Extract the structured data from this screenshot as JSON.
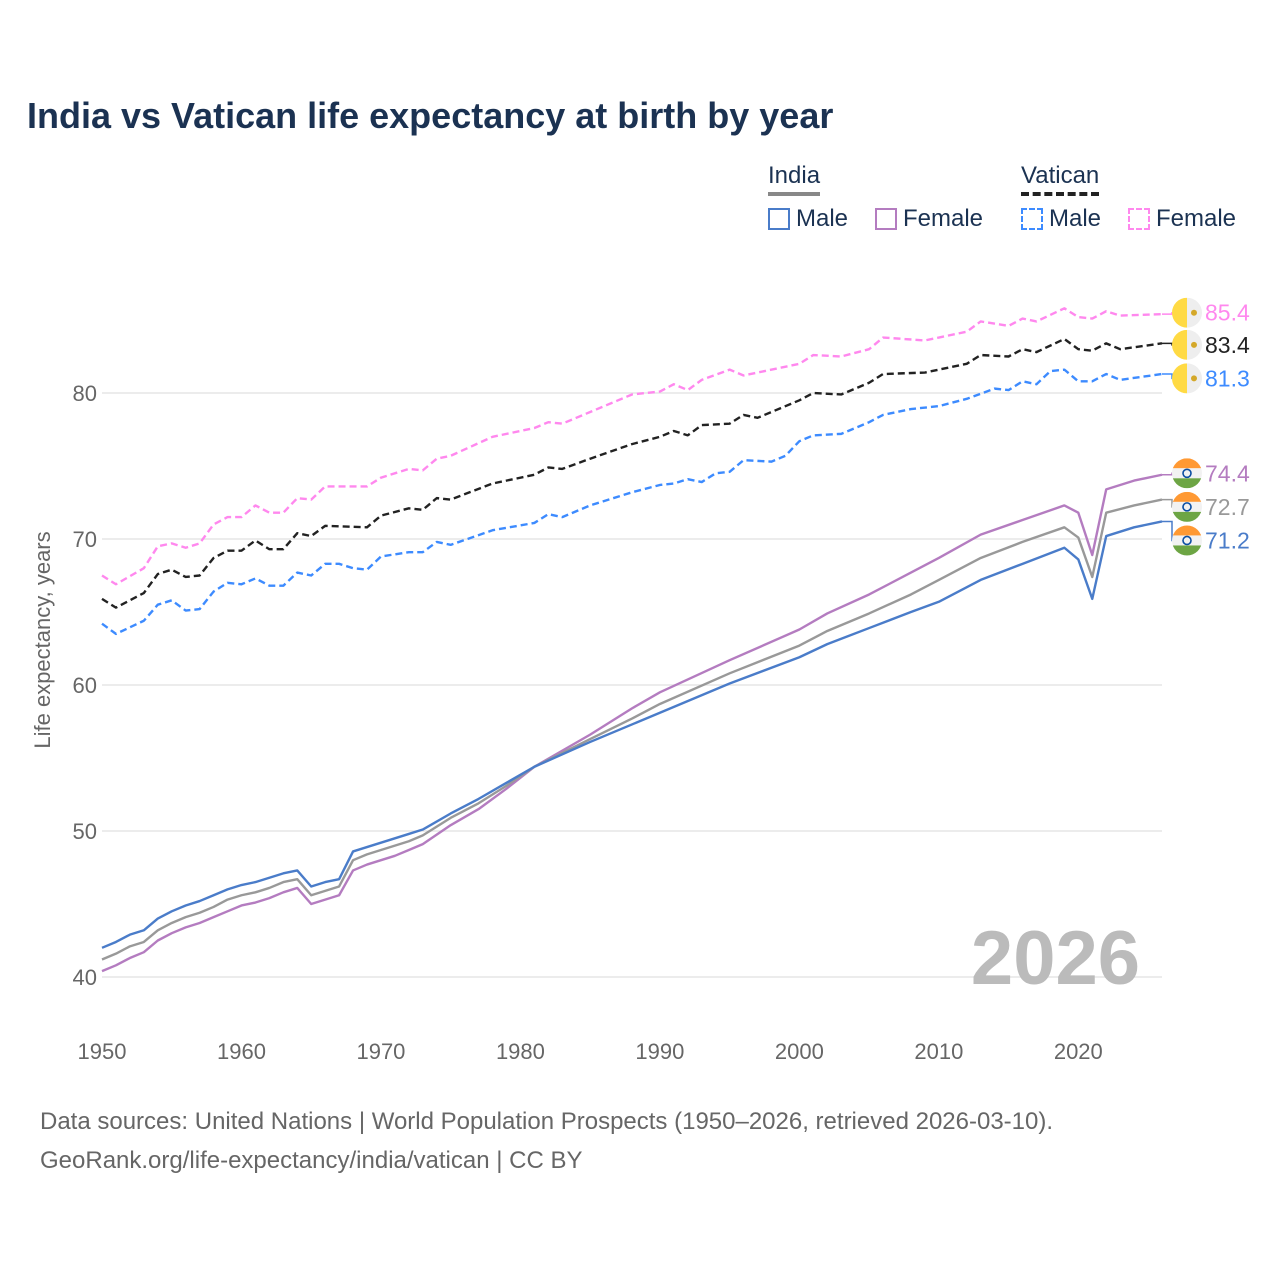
{
  "title": "India vs Vatican life expectancy at birth by year",
  "legend": {
    "india": {
      "label": "India",
      "male": "Male",
      "female": "Female"
    },
    "vatican": {
      "label": "Vatican",
      "male": "Male",
      "female": "Female"
    }
  },
  "year_watermark": "2026",
  "sources": {
    "line1": "Data sources: United Nations | World Population Prospects (1950–2026, retrieved 2026-03-10).",
    "line2": "GeoRank.org/life-expectancy/india/vatican | CC BY"
  },
  "chart_data": {
    "type": "line",
    "title": "India vs Vatican life expectancy at birth by year",
    "xlabel": "",
    "ylabel": "Life expectancy, years",
    "xlim": [
      1950,
      2026
    ],
    "ylim": [
      38.5,
      88
    ],
    "xticks": [
      1950,
      1960,
      1970,
      1980,
      1990,
      2000,
      2010,
      2020
    ],
    "yticks": [
      40,
      50,
      60,
      70,
      80
    ],
    "grid": true,
    "legend_position": "top-right",
    "series": [
      {
        "name": "Vatican Female",
        "color": "#ff88ee",
        "dashed": true,
        "end_label": "85.4",
        "points": [
          [
            1950,
            67.5
          ],
          [
            1951,
            66.9
          ],
          [
            1953,
            68.0
          ],
          [
            1954,
            69.5
          ],
          [
            1955,
            69.7
          ],
          [
            1956,
            69.4
          ],
          [
            1957,
            69.7
          ],
          [
            1958,
            71.0
          ],
          [
            1959,
            71.5
          ],
          [
            1960,
            71.5
          ],
          [
            1961,
            72.3
          ],
          [
            1962,
            71.8
          ],
          [
            1963,
            71.8
          ],
          [
            1964,
            72.8
          ],
          [
            1965,
            72.7
          ],
          [
            1966,
            73.6
          ],
          [
            1969,
            73.6
          ],
          [
            1970,
            74.2
          ],
          [
            1972,
            74.8
          ],
          [
            1973,
            74.7
          ],
          [
            1974,
            75.5
          ],
          [
            1975,
            75.7
          ],
          [
            1978,
            77.0
          ],
          [
            1981,
            77.6
          ],
          [
            1982,
            78.0
          ],
          [
            1983,
            77.9
          ],
          [
            1985,
            78.7
          ],
          [
            1988,
            79.9
          ],
          [
            1990,
            80.1
          ],
          [
            1991,
            80.6
          ],
          [
            1992,
            80.2
          ],
          [
            1993,
            80.9
          ],
          [
            1995,
            81.6
          ],
          [
            1996,
            81.2
          ],
          [
            2000,
            82.0
          ],
          [
            2001,
            82.6
          ],
          [
            2003,
            82.5
          ],
          [
            2005,
            83.0
          ],
          [
            2006,
            83.8
          ],
          [
            2009,
            83.6
          ],
          [
            2010,
            83.8
          ],
          [
            2012,
            84.2
          ],
          [
            2013,
            84.9
          ],
          [
            2015,
            84.6
          ],
          [
            2016,
            85.1
          ],
          [
            2017,
            84.9
          ],
          [
            2019,
            85.8
          ],
          [
            2020,
            85.2
          ],
          [
            2021,
            85.1
          ],
          [
            2022,
            85.6
          ],
          [
            2023,
            85.3
          ],
          [
            2026,
            85.4
          ]
        ]
      },
      {
        "name": "Vatican (both sexes)",
        "color": "#222222",
        "dashed": true,
        "end_label": "83.4",
        "points": [
          [
            1950,
            65.9
          ],
          [
            1951,
            65.3
          ],
          [
            1953,
            66.3
          ],
          [
            1954,
            67.6
          ],
          [
            1955,
            67.9
          ],
          [
            1956,
            67.4
          ],
          [
            1957,
            67.5
          ],
          [
            1958,
            68.7
          ],
          [
            1959,
            69.2
          ],
          [
            1960,
            69.2
          ],
          [
            1961,
            69.9
          ],
          [
            1962,
            69.3
          ],
          [
            1963,
            69.3
          ],
          [
            1964,
            70.4
          ],
          [
            1965,
            70.2
          ],
          [
            1966,
            70.9
          ],
          [
            1969,
            70.8
          ],
          [
            1970,
            71.6
          ],
          [
            1972,
            72.1
          ],
          [
            1973,
            72.0
          ],
          [
            1974,
            72.8
          ],
          [
            1975,
            72.7
          ],
          [
            1978,
            73.8
          ],
          [
            1981,
            74.4
          ],
          [
            1982,
            74.9
          ],
          [
            1983,
            74.8
          ],
          [
            1985,
            75.5
          ],
          [
            1988,
            76.5
          ],
          [
            1990,
            77.0
          ],
          [
            1991,
            77.4
          ],
          [
            1992,
            77.1
          ],
          [
            1993,
            77.8
          ],
          [
            1995,
            77.9
          ],
          [
            1996,
            78.5
          ],
          [
            1997,
            78.3
          ],
          [
            2000,
            79.5
          ],
          [
            2001,
            80.0
          ],
          [
            2003,
            79.9
          ],
          [
            2005,
            80.7
          ],
          [
            2006,
            81.3
          ],
          [
            2009,
            81.4
          ],
          [
            2010,
            81.6
          ],
          [
            2012,
            82.0
          ],
          [
            2013,
            82.6
          ],
          [
            2015,
            82.5
          ],
          [
            2016,
            83.0
          ],
          [
            2017,
            82.8
          ],
          [
            2019,
            83.7
          ],
          [
            2020,
            83.0
          ],
          [
            2021,
            82.9
          ],
          [
            2022,
            83.4
          ],
          [
            2023,
            83.0
          ],
          [
            2026,
            83.4
          ]
        ]
      },
      {
        "name": "Vatican Male",
        "color": "#3d8bff",
        "dashed": true,
        "end_label": "81.3",
        "points": [
          [
            1950,
            64.2
          ],
          [
            1951,
            63.5
          ],
          [
            1953,
            64.4
          ],
          [
            1954,
            65.5
          ],
          [
            1955,
            65.8
          ],
          [
            1956,
            65.1
          ],
          [
            1957,
            65.2
          ],
          [
            1958,
            66.4
          ],
          [
            1959,
            67.0
          ],
          [
            1960,
            66.9
          ],
          [
            1961,
            67.3
          ],
          [
            1962,
            66.8
          ],
          [
            1963,
            66.8
          ],
          [
            1964,
            67.7
          ],
          [
            1965,
            67.5
          ],
          [
            1966,
            68.3
          ],
          [
            1967,
            68.3
          ],
          [
            1968,
            68.0
          ],
          [
            1969,
            67.9
          ],
          [
            1970,
            68.8
          ],
          [
            1972,
            69.1
          ],
          [
            1973,
            69.1
          ],
          [
            1974,
            69.8
          ],
          [
            1975,
            69.6
          ],
          [
            1978,
            70.6
          ],
          [
            1981,
            71.1
          ],
          [
            1982,
            71.7
          ],
          [
            1983,
            71.5
          ],
          [
            1985,
            72.3
          ],
          [
            1988,
            73.2
          ],
          [
            1990,
            73.7
          ],
          [
            1991,
            73.8
          ],
          [
            1992,
            74.1
          ],
          [
            1993,
            73.9
          ],
          [
            1994,
            74.5
          ],
          [
            1995,
            74.6
          ],
          [
            1996,
            75.4
          ],
          [
            1998,
            75.3
          ],
          [
            1999,
            75.7
          ],
          [
            2000,
            76.7
          ],
          [
            2001,
            77.1
          ],
          [
            2003,
            77.2
          ],
          [
            2005,
            78.0
          ],
          [
            2006,
            78.5
          ],
          [
            2008,
            78.9
          ],
          [
            2010,
            79.1
          ],
          [
            2012,
            79.6
          ],
          [
            2014,
            80.3
          ],
          [
            2015,
            80.2
          ],
          [
            2016,
            80.8
          ],
          [
            2017,
            80.6
          ],
          [
            2018,
            81.5
          ],
          [
            2019,
            81.6
          ],
          [
            2020,
            80.8
          ],
          [
            2021,
            80.8
          ],
          [
            2022,
            81.3
          ],
          [
            2023,
            80.9
          ],
          [
            2026,
            81.3
          ]
        ]
      },
      {
        "name": "India Female",
        "color": "#b47cc0",
        "dashed": false,
        "end_label": "74.4",
        "points": [
          [
            1950,
            40.4
          ],
          [
            1951,
            40.8
          ],
          [
            1952,
            41.3
          ],
          [
            1953,
            41.7
          ],
          [
            1954,
            42.5
          ],
          [
            1955,
            43.0
          ],
          [
            1956,
            43.4
          ],
          [
            1957,
            43.7
          ],
          [
            1958,
            44.1
          ],
          [
            1959,
            44.5
          ],
          [
            1960,
            44.9
          ],
          [
            1961,
            45.1
          ],
          [
            1962,
            45.4
          ],
          [
            1963,
            45.8
          ],
          [
            1964,
            46.1
          ],
          [
            1965,
            45.0
          ],
          [
            1966,
            45.3
          ],
          [
            1967,
            45.6
          ],
          [
            1968,
            47.3
          ],
          [
            1969,
            47.7
          ],
          [
            1970,
            48.0
          ],
          [
            1971,
            48.3
          ],
          [
            1972,
            48.7
          ],
          [
            1973,
            49.1
          ],
          [
            1975,
            50.4
          ],
          [
            1977,
            51.5
          ],
          [
            1979,
            52.9
          ],
          [
            1981,
            54.4
          ],
          [
            1985,
            56.6
          ],
          [
            1988,
            58.4
          ],
          [
            1990,
            59.5
          ],
          [
            1995,
            61.7
          ],
          [
            2000,
            63.8
          ],
          [
            2002,
            64.9
          ],
          [
            2005,
            66.2
          ],
          [
            2008,
            67.7
          ],
          [
            2010,
            68.7
          ],
          [
            2013,
            70.3
          ],
          [
            2016,
            71.3
          ],
          [
            2019,
            72.3
          ],
          [
            2020,
            71.8
          ],
          [
            2021,
            68.9
          ],
          [
            2022,
            73.4
          ],
          [
            2024,
            74.0
          ],
          [
            2026,
            74.4
          ]
        ]
      },
      {
        "name": "India (both sexes)",
        "color": "#999999",
        "dashed": false,
        "end_label": "72.7",
        "points": [
          [
            1950,
            41.2
          ],
          [
            1951,
            41.6
          ],
          [
            1952,
            42.1
          ],
          [
            1953,
            42.4
          ],
          [
            1954,
            43.2
          ],
          [
            1955,
            43.7
          ],
          [
            1956,
            44.1
          ],
          [
            1957,
            44.4
          ],
          [
            1958,
            44.8
          ],
          [
            1959,
            45.3
          ],
          [
            1960,
            45.6
          ],
          [
            1961,
            45.8
          ],
          [
            1962,
            46.1
          ],
          [
            1963,
            46.5
          ],
          [
            1964,
            46.7
          ],
          [
            1965,
            45.6
          ],
          [
            1966,
            45.9
          ],
          [
            1967,
            46.2
          ],
          [
            1968,
            48.0
          ],
          [
            1969,
            48.4
          ],
          [
            1970,
            48.7
          ],
          [
            1971,
            49.0
          ],
          [
            1972,
            49.3
          ],
          [
            1973,
            49.7
          ],
          [
            1975,
            50.9
          ],
          [
            1977,
            51.9
          ],
          [
            1979,
            53.1
          ],
          [
            1981,
            54.4
          ],
          [
            1985,
            56.3
          ],
          [
            1988,
            57.7
          ],
          [
            1990,
            58.7
          ],
          [
            1995,
            60.8
          ],
          [
            2000,
            62.7
          ],
          [
            2002,
            63.7
          ],
          [
            2005,
            64.9
          ],
          [
            2008,
            66.2
          ],
          [
            2010,
            67.2
          ],
          [
            2013,
            68.7
          ],
          [
            2016,
            69.8
          ],
          [
            2019,
            70.8
          ],
          [
            2020,
            70.1
          ],
          [
            2021,
            67.4
          ],
          [
            2022,
            71.8
          ],
          [
            2024,
            72.3
          ],
          [
            2026,
            72.7
          ]
        ]
      },
      {
        "name": "India Male",
        "color": "#4a7cc9",
        "dashed": false,
        "end_label": "71.2",
        "points": [
          [
            1950,
            42.0
          ],
          [
            1951,
            42.4
          ],
          [
            1952,
            42.9
          ],
          [
            1953,
            43.2
          ],
          [
            1954,
            44.0
          ],
          [
            1955,
            44.5
          ],
          [
            1956,
            44.9
          ],
          [
            1957,
            45.2
          ],
          [
            1958,
            45.6
          ],
          [
            1959,
            46.0
          ],
          [
            1960,
            46.3
          ],
          [
            1961,
            46.5
          ],
          [
            1962,
            46.8
          ],
          [
            1963,
            47.1
          ],
          [
            1964,
            47.3
          ],
          [
            1965,
            46.2
          ],
          [
            1966,
            46.5
          ],
          [
            1967,
            46.7
          ],
          [
            1968,
            48.6
          ],
          [
            1969,
            48.9
          ],
          [
            1970,
            49.2
          ],
          [
            1971,
            49.5
          ],
          [
            1972,
            49.8
          ],
          [
            1973,
            50.1
          ],
          [
            1975,
            51.2
          ],
          [
            1977,
            52.2
          ],
          [
            1979,
            53.3
          ],
          [
            1981,
            54.4
          ],
          [
            1985,
            56.1
          ],
          [
            1988,
            57.3
          ],
          [
            1990,
            58.1
          ],
          [
            1995,
            60.1
          ],
          [
            2000,
            61.9
          ],
          [
            2002,
            62.8
          ],
          [
            2005,
            63.9
          ],
          [
            2008,
            65.0
          ],
          [
            2010,
            65.7
          ],
          [
            2013,
            67.2
          ],
          [
            2016,
            68.3
          ],
          [
            2019,
            69.4
          ],
          [
            2020,
            68.6
          ],
          [
            2021,
            65.9
          ],
          [
            2022,
            70.2
          ],
          [
            2024,
            70.8
          ],
          [
            2026,
            71.2
          ]
        ]
      }
    ]
  }
}
